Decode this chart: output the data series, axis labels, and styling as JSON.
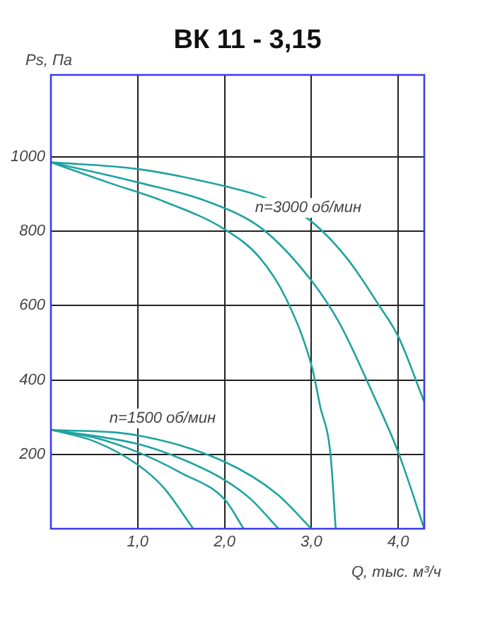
{
  "chart_data": {
    "type": "line",
    "title": "ВК 11 - 3,15",
    "xlabel": "Q, тыс. м³/ч",
    "ylabel": "Ps, Па",
    "xlim": [
      0,
      4.3
    ],
    "xticks": [
      {
        "value": 1,
        "label": "1,0"
      },
      {
        "value": 2,
        "label": "2,0"
      },
      {
        "value": 3,
        "label": "3,0"
      },
      {
        "value": 4,
        "label": "4,0"
      }
    ],
    "ylim": [
      0,
      1220
    ],
    "yticks": [
      200,
      400,
      600,
      800,
      1000
    ],
    "grid": true,
    "legend": false,
    "marker": "none",
    "line_style": "solid",
    "annotations": [
      "n=3000 об/мин",
      "n=1500 об/мин"
    ],
    "series": [
      {
        "color": "#1fa3a0",
        "x": [
          0,
          0.67,
          1.3,
          2.0,
          2.4,
          2.71,
          3.01,
          3.1,
          3.22,
          3.28
        ],
        "values": [
          985,
          930,
          880,
          805,
          730,
          618,
          431,
          330,
          200,
          0
        ]
      },
      {
        "color": "#1fa3a0",
        "x": [
          0,
          1.04,
          1.8,
          2.44,
          3.0,
          3.32,
          3.7,
          4.0,
          4.3
        ],
        "values": [
          985,
          929,
          880,
          805,
          667,
          554,
          367,
          206,
          0
        ]
      },
      {
        "color": "#1fa3a0",
        "x": [
          0,
          1.0,
          2.0,
          2.45,
          2.95,
          3.4,
          3.78,
          4.0,
          4.3
        ],
        "values": [
          985,
          967,
          921,
          891,
          835,
          730,
          600,
          517,
          341
        ]
      },
      {
        "color": "#1fa3a0",
        "x": [
          0,
          0.5,
          1.0,
          1.3,
          1.64
        ],
        "values": [
          266,
          235,
          172,
          110,
          0
        ]
      },
      {
        "color": "#1fa3a0",
        "x": [
          0,
          0.5,
          1.0,
          1.5,
          2.0,
          2.22
        ],
        "values": [
          266,
          245,
          206,
          150,
          79,
          0
        ]
      },
      {
        "color": "#1fa3a0",
        "x": [
          0,
          1.0,
          1.5,
          2.0,
          2.3,
          2.62
        ],
        "values": [
          266,
          228,
          188,
          131,
          80,
          0
        ]
      },
      {
        "color": "#1fa3a0",
        "x": [
          0,
          1.0,
          2.0,
          2.6,
          3.0
        ],
        "values": [
          266,
          251,
          180,
          94,
          0
        ]
      }
    ]
  }
}
